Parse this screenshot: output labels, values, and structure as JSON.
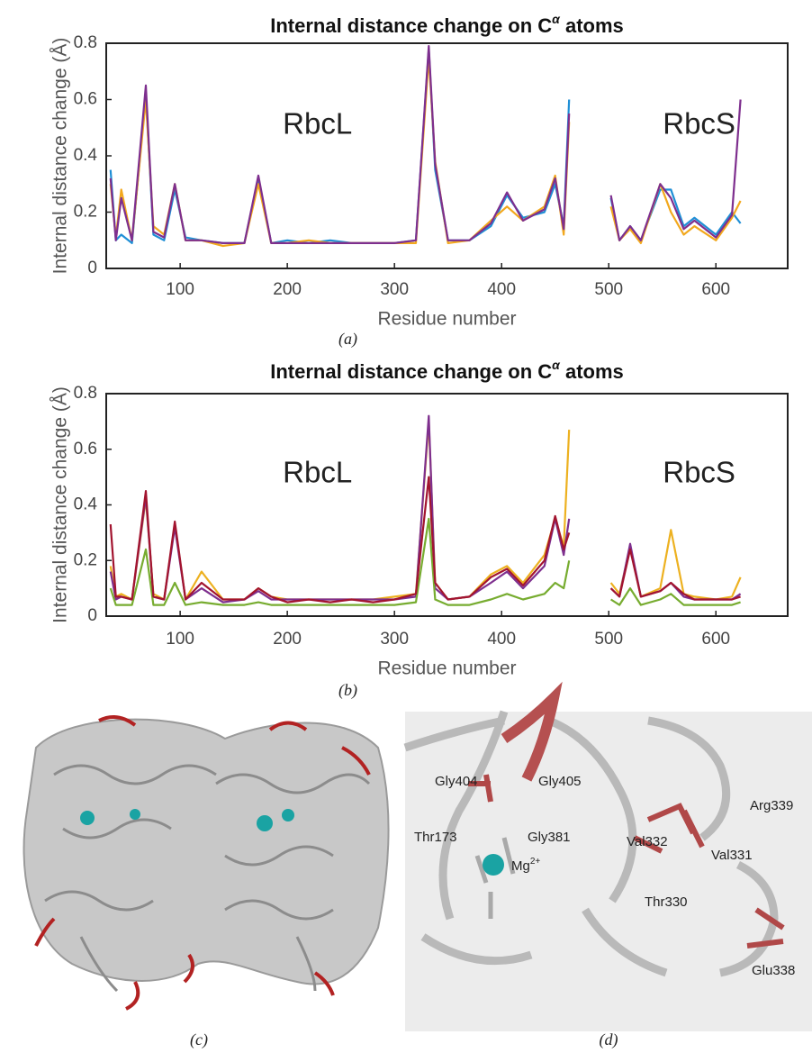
{
  "chart_data": [
    {
      "type": "line",
      "title": [
        "Internal distance change on C",
        "α",
        " atoms"
      ],
      "panel_label": "(a)",
      "x_label": "Residue number",
      "y_label": "Internal distance change (Å)",
      "annotations": [
        "RbcL",
        "RbcS"
      ],
      "xlim": [
        31,
        667
      ],
      "xticks": [
        100,
        200,
        300,
        400,
        500,
        600
      ],
      "ylim": [
        0,
        0.8
      ],
      "yticks": [
        0,
        0.2,
        0.4,
        0.6,
        0.8
      ],
      "x": [
        35,
        40,
        45,
        55,
        68,
        75,
        85,
        95,
        105,
        120,
        140,
        160,
        173,
        185,
        200,
        220,
        240,
        260,
        280,
        300,
        320,
        332,
        338,
        350,
        370,
        390,
        405,
        420,
        440,
        450,
        458,
        463,
        480,
        502,
        510,
        520,
        530,
        548,
        558,
        570,
        580,
        600,
        615,
        623
      ],
      "series": [
        {
          "color": "#1f8fd6",
          "values": [
            0.35,
            0.1,
            0.12,
            0.09,
            0.62,
            0.12,
            0.1,
            0.28,
            0.11,
            0.1,
            0.09,
            0.09,
            0.32,
            0.09,
            0.1,
            0.09,
            0.1,
            0.09,
            0.09,
            0.09,
            0.1,
            0.78,
            0.35,
            0.1,
            0.1,
            0.15,
            0.26,
            0.18,
            0.2,
            0.3,
            0.15,
            0.6,
            null,
            0.25,
            0.1,
            0.15,
            0.1,
            0.28,
            0.28,
            0.15,
            0.18,
            0.12,
            0.2,
            0.16
          ]
        },
        {
          "color": "#f2a81d",
          "values": [
            0.3,
            0.11,
            0.28,
            0.1,
            0.6,
            0.15,
            0.12,
            0.3,
            0.1,
            0.1,
            0.08,
            0.09,
            0.3,
            0.09,
            0.09,
            0.1,
            0.09,
            0.09,
            0.09,
            0.09,
            0.09,
            0.75,
            0.38,
            0.09,
            0.1,
            0.17,
            0.22,
            0.17,
            0.22,
            0.33,
            0.12,
            0.52,
            null,
            0.22,
            0.1,
            0.14,
            0.09,
            0.3,
            0.2,
            0.12,
            0.15,
            0.1,
            0.18,
            0.24
          ]
        },
        {
          "color": "#7e2f8e",
          "values": [
            0.32,
            0.1,
            0.25,
            0.1,
            0.65,
            0.13,
            0.11,
            0.3,
            0.1,
            0.1,
            0.09,
            0.09,
            0.33,
            0.09,
            0.09,
            0.09,
            0.09,
            0.09,
            0.09,
            0.09,
            0.1,
            0.79,
            0.37,
            0.1,
            0.1,
            0.16,
            0.27,
            0.17,
            0.21,
            0.32,
            0.14,
            0.55,
            null,
            0.26,
            0.1,
            0.15,
            0.1,
            0.3,
            0.25,
            0.14,
            0.17,
            0.11,
            0.19,
            0.6
          ]
        }
      ]
    },
    {
      "type": "line",
      "title": [
        "Internal distance change on C",
        "α",
        " atoms"
      ],
      "panel_label": "(b)",
      "x_label": "Residue number",
      "y_label": "Internal distance change (Å)",
      "annotations": [
        "RbcL",
        "RbcS"
      ],
      "xlim": [
        31,
        667
      ],
      "xticks": [
        100,
        200,
        300,
        400,
        500,
        600
      ],
      "ylim": [
        0,
        0.8
      ],
      "yticks": [
        0,
        0.2,
        0.4,
        0.6,
        0.8
      ],
      "x": [
        35,
        40,
        45,
        55,
        68,
        75,
        85,
        95,
        105,
        120,
        140,
        160,
        173,
        185,
        200,
        220,
        240,
        260,
        280,
        300,
        320,
        332,
        338,
        350,
        370,
        390,
        405,
        420,
        440,
        450,
        458,
        463,
        480,
        502,
        510,
        520,
        530,
        548,
        558,
        570,
        580,
        600,
        615,
        623
      ],
      "series": [
        {
          "color": "#edb120",
          "values": [
            0.18,
            0.07,
            0.08,
            0.06,
            0.42,
            0.08,
            0.06,
            0.33,
            0.06,
            0.16,
            0.06,
            0.06,
            0.1,
            0.07,
            0.06,
            0.06,
            0.06,
            0.06,
            0.06,
            0.07,
            0.08,
            0.7,
            0.12,
            0.06,
            0.07,
            0.15,
            0.18,
            0.12,
            0.22,
            0.35,
            0.25,
            0.67,
            null,
            0.12,
            0.08,
            0.25,
            0.07,
            0.1,
            0.31,
            0.08,
            0.07,
            0.06,
            0.07,
            0.14
          ]
        },
        {
          "color": "#7e2f8e",
          "values": [
            0.16,
            0.06,
            0.07,
            0.06,
            0.43,
            0.07,
            0.06,
            0.32,
            0.06,
            0.1,
            0.05,
            0.06,
            0.09,
            0.06,
            0.06,
            0.06,
            0.06,
            0.06,
            0.06,
            0.06,
            0.07,
            0.72,
            0.1,
            0.06,
            0.07,
            0.12,
            0.16,
            0.1,
            0.18,
            0.35,
            0.22,
            0.35,
            null,
            0.1,
            0.07,
            0.26,
            0.07,
            0.09,
            0.12,
            0.07,
            0.06,
            0.06,
            0.06,
            0.08
          ]
        },
        {
          "color": "#77ac30",
          "values": [
            0.1,
            0.04,
            0.04,
            0.04,
            0.24,
            0.04,
            0.04,
            0.12,
            0.04,
            0.05,
            0.04,
            0.04,
            0.05,
            0.04,
            0.04,
            0.04,
            0.04,
            0.04,
            0.04,
            0.04,
            0.05,
            0.35,
            0.06,
            0.04,
            0.04,
            0.06,
            0.08,
            0.06,
            0.08,
            0.12,
            0.1,
            0.2,
            null,
            0.06,
            0.04,
            0.1,
            0.04,
            0.06,
            0.08,
            0.04,
            0.04,
            0.04,
            0.04,
            0.05
          ]
        },
        {
          "color": "#a2142f",
          "values": [
            0.33,
            0.07,
            0.07,
            0.06,
            0.45,
            0.07,
            0.06,
            0.34,
            0.06,
            0.12,
            0.06,
            0.06,
            0.1,
            0.07,
            0.05,
            0.06,
            0.05,
            0.06,
            0.05,
            0.06,
            0.08,
            0.5,
            0.12,
            0.06,
            0.07,
            0.14,
            0.17,
            0.11,
            0.2,
            0.36,
            0.24,
            0.3,
            null,
            0.1,
            0.07,
            0.24,
            0.07,
            0.09,
            0.12,
            0.08,
            0.06,
            0.06,
            0.06,
            0.07
          ]
        }
      ]
    }
  ],
  "panel_c": {
    "label": "(c)"
  },
  "panel_d": {
    "label": "(d)",
    "residues": [
      "Gly404",
      "Gly405",
      "Gly381",
      "Thr173",
      "Val332",
      "Val331",
      "Arg339",
      "Thr330",
      "Glu338"
    ],
    "ion": [
      "Mg",
      "2+"
    ]
  }
}
